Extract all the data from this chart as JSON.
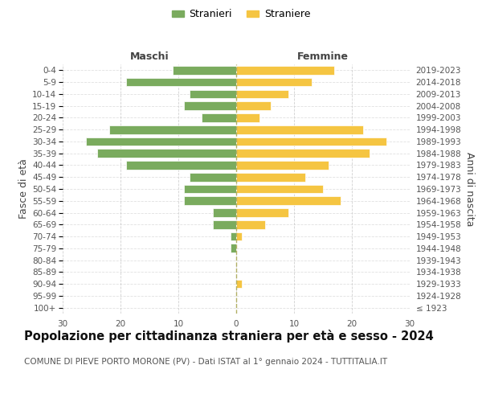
{
  "age_groups": [
    "100+",
    "95-99",
    "90-94",
    "85-89",
    "80-84",
    "75-79",
    "70-74",
    "65-69",
    "60-64",
    "55-59",
    "50-54",
    "45-49",
    "40-44",
    "35-39",
    "30-34",
    "25-29",
    "20-24",
    "15-19",
    "10-14",
    "5-9",
    "0-4"
  ],
  "birth_years": [
    "≤ 1923",
    "1924-1928",
    "1929-1933",
    "1934-1938",
    "1939-1943",
    "1944-1948",
    "1949-1953",
    "1954-1958",
    "1959-1963",
    "1964-1968",
    "1969-1973",
    "1974-1978",
    "1979-1983",
    "1984-1988",
    "1989-1993",
    "1994-1998",
    "1999-2003",
    "2004-2008",
    "2009-2013",
    "2014-2018",
    "2019-2023"
  ],
  "males": [
    0,
    0,
    0,
    0,
    0,
    1,
    1,
    4,
    4,
    9,
    9,
    8,
    19,
    24,
    26,
    22,
    6,
    9,
    8,
    19,
    11
  ],
  "females": [
    0,
    0,
    1,
    0,
    0,
    0,
    1,
    5,
    9,
    18,
    15,
    12,
    16,
    23,
    26,
    22,
    4,
    6,
    9,
    13,
    17
  ],
  "male_color": "#7aab5e",
  "female_color": "#f5c542",
  "bar_edge_color": "white",
  "background_color": "#ffffff",
  "grid_color": "#cccccc",
  "title": "Popolazione per cittadinanza straniera per età e sesso - 2024",
  "subtitle": "COMUNE DI PIEVE PORTO MORONE (PV) - Dati ISTAT al 1° gennaio 2024 - TUTTITALIA.IT",
  "xlabel_left": "Maschi",
  "xlabel_right": "Femmine",
  "ylabel_left": "Fasce di età",
  "ylabel_right": "Anni di nascita",
  "legend_stranieri": "Stranieri",
  "legend_straniere": "Straniere",
  "xlim": 30,
  "title_fontsize": 10.5,
  "subtitle_fontsize": 7.5,
  "tick_fontsize": 7.5,
  "label_fontsize": 9
}
